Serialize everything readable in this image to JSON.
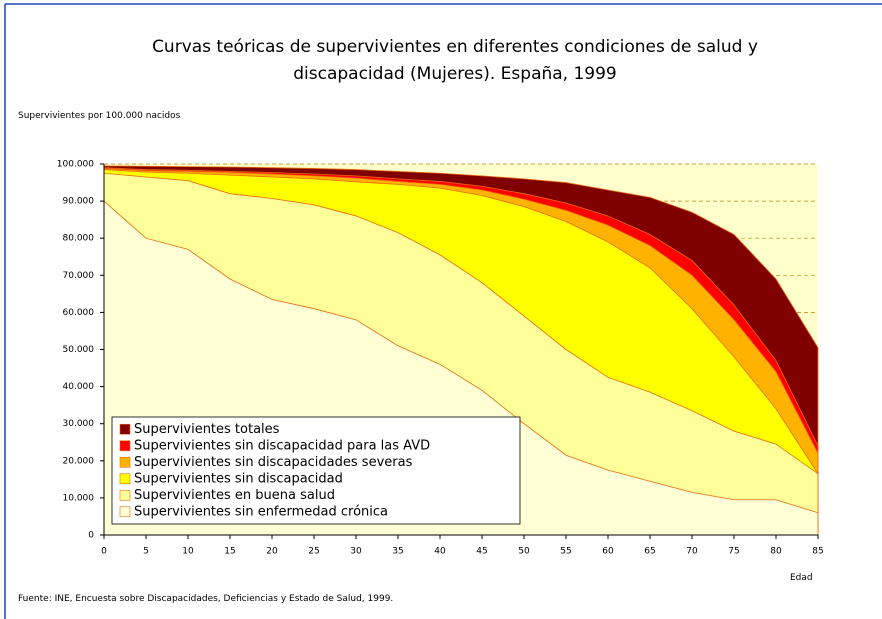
{
  "chart_data": {
    "type": "area",
    "title": "Curvas teóricas de supervivientes en diferentes condiciones de salud y discapacidad (Mujeres). España, 1999",
    "y_label": "Supervivientes por 100.000 nacidos",
    "x_label": "Edad",
    "source": "Fuente: INE, Encuesta sobre Discapacidades, Deficiencias y Estado de Salud, 1999.",
    "x": [
      0,
      5,
      10,
      15,
      20,
      25,
      30,
      35,
      40,
      45,
      50,
      55,
      60,
      65,
      70,
      75,
      80,
      85
    ],
    "xlim": [
      0,
      85
    ],
    "xticks": [
      0,
      5,
      10,
      15,
      20,
      25,
      30,
      35,
      40,
      45,
      50,
      55,
      60,
      65,
      70,
      75,
      80,
      85
    ],
    "ylim": [
      0,
      100000
    ],
    "yticks": [
      0,
      {
        "value": 10000,
        "label": "10.000"
      },
      {
        "value": 20000,
        "label": "20.000"
      },
      {
        "value": 30000,
        "label": "30.000"
      },
      {
        "value": 40000,
        "label": "40.000"
      },
      {
        "value": 50000,
        "label": "50.000"
      },
      {
        "value": 60000,
        "label": "60.000"
      },
      {
        "value": 70000,
        "label": "70.000"
      },
      {
        "value": 80000,
        "label": "80.000"
      },
      {
        "value": 90000,
        "label": "90.000"
      },
      {
        "value": 100000,
        "label": "100.000"
      }
    ],
    "grid": true,
    "legend": "lower left",
    "series": [
      {
        "name": "Supervivientes totales",
        "color": "#800000",
        "values": [
          99500,
          99400,
          99300,
          99200,
          99000,
          98800,
          98500,
          98000,
          97500,
          96800,
          96000,
          95000,
          93000,
          91000,
          87000,
          81000,
          69000,
          50500
        ]
      },
      {
        "name": "Supervivientes sin discapacidad para las AVD",
        "color": "#ff0000",
        "values": [
          99000,
          98500,
          98300,
          98000,
          97700,
          97300,
          96800,
          96000,
          95300,
          94000,
          92000,
          89500,
          86000,
          81000,
          74000,
          62000,
          47000,
          24000
        ]
      },
      {
        "name": "Supervivientes sin discapacidades severas",
        "color": "#ffb300",
        "values": [
          98800,
          98200,
          98000,
          97700,
          97300,
          96800,
          96200,
          95300,
          94500,
          93000,
          90500,
          87500,
          83500,
          78000,
          70000,
          58000,
          44000,
          22000
        ]
      },
      {
        "name": "Supervivientes sin discapacidad",
        "color": "#ffff00",
        "values": [
          98500,
          97800,
          97500,
          97000,
          96500,
          96000,
          95200,
          94500,
          93500,
          91500,
          88500,
          84500,
          79000,
          72000,
          61000,
          48000,
          34000,
          16500
        ]
      },
      {
        "name": "Supervivientes en buena salud",
        "color": "#ffff99",
        "values": [
          97500,
          96500,
          95500,
          92000,
          90700,
          89000,
          86000,
          81500,
          75500,
          68000,
          59000,
          50000,
          42500,
          38500,
          33500,
          28000,
          24500,
          16500
        ]
      },
      {
        "name": "Supervivientes sin enfermedad crónica",
        "color": "#ffffd6",
        "values": [
          90000,
          80000,
          77000,
          69000,
          63500,
          61000,
          58000,
          51000,
          46000,
          39000,
          30000,
          21500,
          17500,
          14500,
          11500,
          9500,
          9500,
          6000
        ]
      }
    ]
  }
}
